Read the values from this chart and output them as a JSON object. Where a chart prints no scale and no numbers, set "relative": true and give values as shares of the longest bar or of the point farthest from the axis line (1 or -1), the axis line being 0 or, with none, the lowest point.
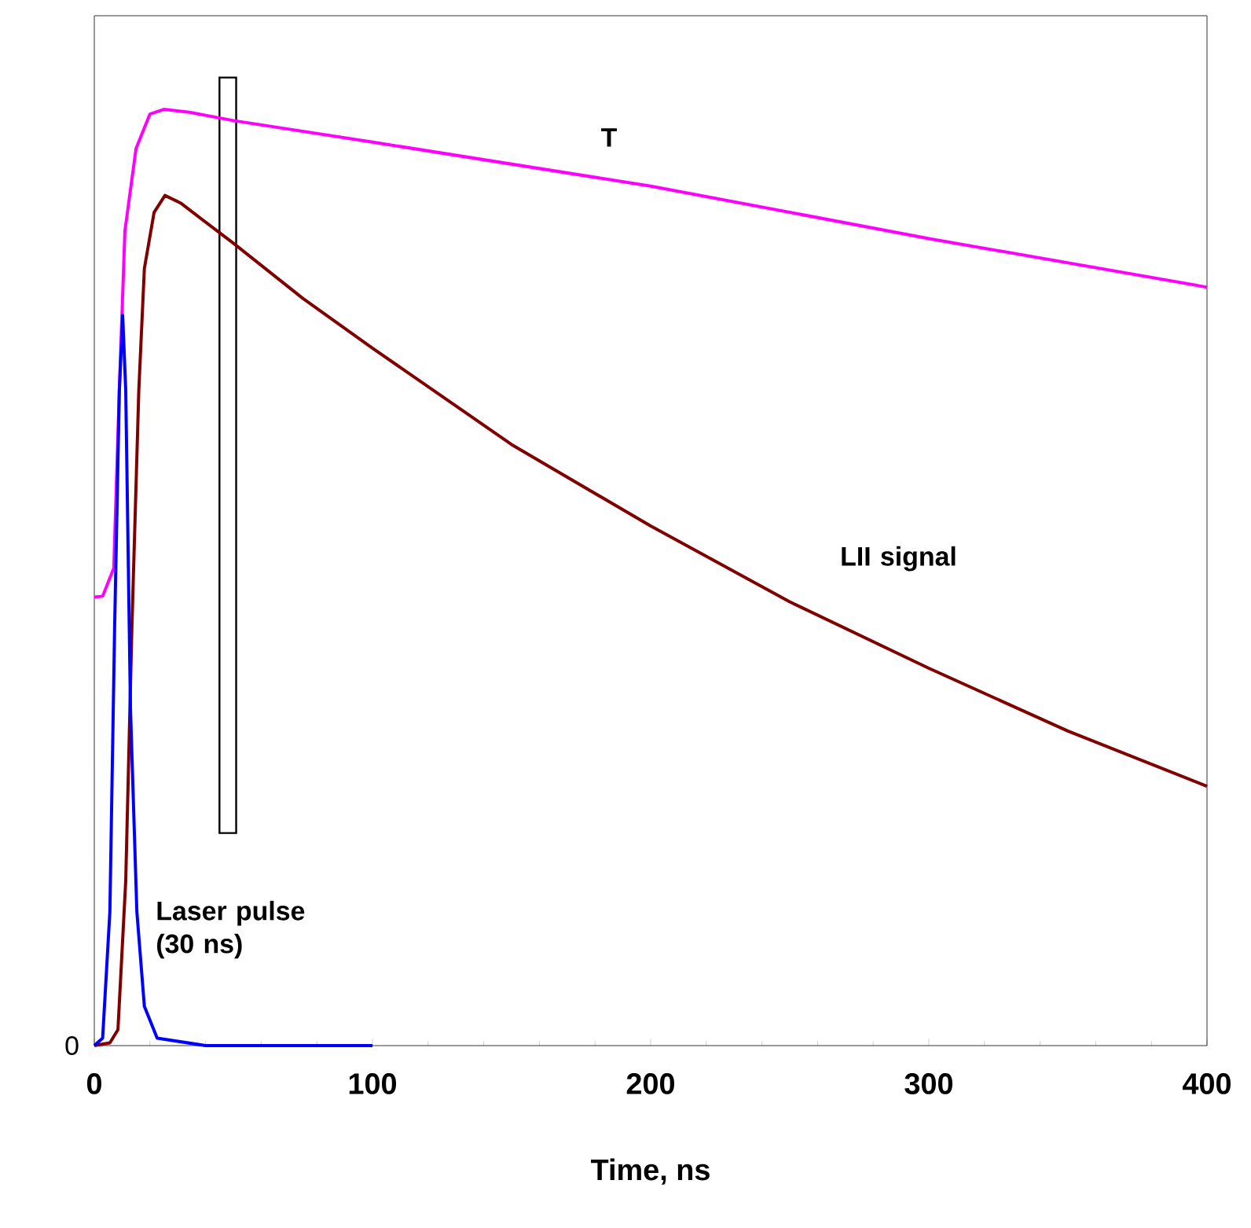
{
  "chart_data": {
    "type": "line",
    "relative": true,
    "xlabel": "Time, ns",
    "xlim": [
      0,
      400
    ],
    "xticks": [
      0,
      100,
      200,
      300,
      400
    ],
    "grid": false,
    "legend": false,
    "marker": "none",
    "line_style": "solid",
    "series": [
      {
        "name": "T",
        "color": "#ff00ff",
        "x": [
          0,
          3,
          7,
          9,
          11,
          15,
          20,
          25,
          34,
          50,
          100,
          200,
          300,
          400
        ],
        "values": [
          0.479,
          0.48,
          0.51,
          0.7,
          0.87,
          0.958,
          0.995,
          1.0,
          0.997,
          0.988,
          0.965,
          0.918,
          0.862,
          0.81
        ]
      },
      {
        "name": "LII signal",
        "color": "#800000",
        "x": [
          0,
          5.6,
          8.5,
          11.3,
          13.5,
          16,
          18,
          21.5,
          25.4,
          31,
          50,
          75,
          100,
          150,
          200,
          250,
          300,
          350,
          400
        ],
        "values": [
          0,
          0.003,
          0.017,
          0.176,
          0.445,
          0.7,
          0.83,
          0.89,
          0.908,
          0.9,
          0.857,
          0.798,
          0.745,
          0.642,
          0.555,
          0.474,
          0.403,
          0.336,
          0.277
        ]
      },
      {
        "name": "Laser pulse (30 ns)",
        "color": "#0000ff",
        "x": [
          0,
          3,
          5.6,
          7.3,
          9,
          10.2,
          11.3,
          13,
          15.3,
          18,
          22.6,
          40,
          100
        ],
        "values": [
          0,
          0.008,
          0.143,
          0.445,
          0.7,
          0.78,
          0.7,
          0.36,
          0.143,
          0.042,
          0.008,
          0,
          0
        ]
      }
    ],
    "bands": [
      {
        "axis": "x",
        "from": 45,
        "to": 51,
        "color": "#000000"
      }
    ],
    "annotations": [
      "0"
    ]
  }
}
